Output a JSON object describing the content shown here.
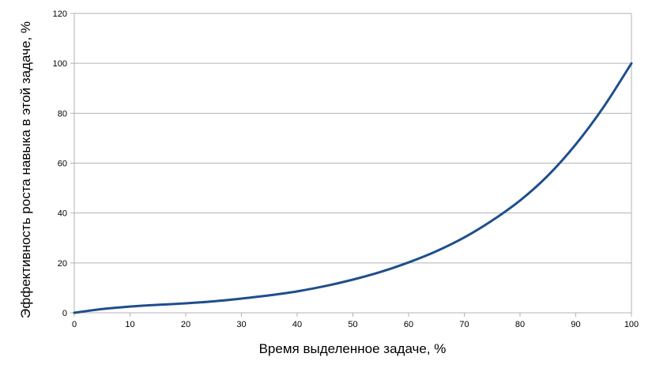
{
  "chart_data": {
    "type": "line",
    "title": "",
    "xlabel": "Время выделенное задаче, %",
    "ylabel": "Эффективность роста навыка в этой задаче, %",
    "xlim": [
      0,
      100
    ],
    "ylim": [
      0,
      120
    ],
    "x_ticks": [
      "0",
      "10",
      "20",
      "30",
      "40",
      "50",
      "60",
      "70",
      "80",
      "90",
      "100"
    ],
    "y_ticks": [
      "0",
      "20",
      "40",
      "60",
      "80",
      "100",
      "120"
    ],
    "grid": "horizontal",
    "legend": "none",
    "series": [
      {
        "color": "#1f4e8c",
        "x": [
          0,
          5,
          10,
          15,
          20,
          25,
          30,
          35,
          40,
          45,
          50,
          55,
          60,
          65,
          70,
          75,
          80,
          85,
          90,
          95,
          100
        ],
        "y": [
          0,
          1.5,
          2.5,
          3.2,
          3.8,
          4.6,
          5.7,
          7.0,
          8.6,
          10.7,
          13.3,
          16.4,
          20.2,
          24.7,
          30.2,
          37.0,
          45.0,
          55.0,
          67.5,
          82.5,
          100
        ]
      }
    ]
  }
}
